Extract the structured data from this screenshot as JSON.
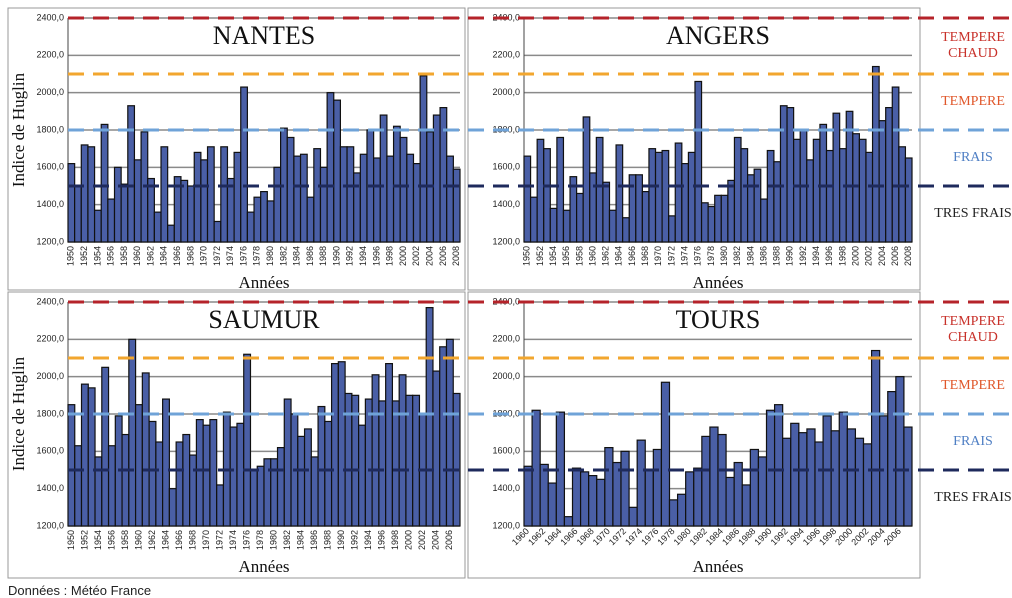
{
  "chart_data": [
    {
      "type": "bar",
      "title": "NANTES",
      "y_label": "Indice de Huglin",
      "x_label": "Années",
      "color": "#4a5fa6",
      "grid": true,
      "ylim": [
        1200,
        2400
      ],
      "yticks": [
        {
          "value": 1200,
          "label": "1200,0"
        },
        {
          "value": 1400,
          "label": "1400,0"
        },
        {
          "value": 1600,
          "label": "1600,0"
        },
        {
          "value": 1800,
          "label": "1800,0"
        },
        {
          "value": 2000,
          "label": "2000,0"
        },
        {
          "value": 2200,
          "label": "2200,0"
        },
        {
          "value": 2400,
          "label": "2400,0"
        }
      ],
      "categories": [
        "1950",
        null,
        "1952",
        null,
        "1954",
        null,
        "1956",
        null,
        "1958",
        null,
        "1960",
        null,
        "1962",
        null,
        "1964",
        null,
        "1966",
        null,
        "1968",
        null,
        "1970",
        null,
        "1972",
        null,
        "1974",
        null,
        "1976",
        null,
        "1978",
        null,
        "1980",
        null,
        "1982",
        null,
        "1984",
        null,
        "1986",
        null,
        "1988",
        null,
        "1990",
        null,
        "1992",
        null,
        "1994",
        null,
        "1996",
        null,
        "1998",
        null,
        "2000",
        null,
        "2002",
        null,
        "2004",
        null,
        "2006",
        null,
        "2008"
      ],
      "values": [
        1620,
        1500,
        1720,
        1710,
        1370,
        1830,
        1430,
        1600,
        1510,
        1930,
        1640,
        1790,
        1540,
        1360,
        1710,
        1290,
        1550,
        1530,
        1500,
        1680,
        1640,
        1710,
        1310,
        1710,
        1540,
        1680,
        2030,
        1360,
        1440,
        1470,
        1420,
        1600,
        1810,
        1760,
        1660,
        1670,
        1440,
        1700,
        1600,
        2000,
        1960,
        1710,
        1710,
        1570,
        1670,
        1800,
        1650,
        1880,
        1660,
        1820,
        1760,
        1670,
        1620,
        2090,
        1790,
        1880,
        1920,
        1660,
        1590
      ]
    },
    {
      "type": "bar",
      "title": "ANGERS",
      "x_label": "Années",
      "color": "#4a5fa6",
      "grid": true,
      "ylim": [
        1200,
        2400
      ],
      "yticks": [
        {
          "value": 1200,
          "label": "1200,0"
        },
        {
          "value": 1400,
          "label": "1400,0"
        },
        {
          "value": 1600,
          "label": "1600,0"
        },
        {
          "value": 1800,
          "label": "1800,0"
        },
        {
          "value": 2000,
          "label": "2000,0"
        },
        {
          "value": 2200,
          "label": "2200,0"
        },
        {
          "value": 2400,
          "label": "2400,0"
        }
      ],
      "categories": [
        "1950",
        null,
        "1952",
        null,
        "1954",
        null,
        "1956",
        null,
        "1958",
        null,
        "1960",
        null,
        "1962",
        null,
        "1964",
        null,
        "1966",
        null,
        "1968",
        null,
        "1970",
        null,
        "1972",
        null,
        "1974",
        null,
        "1976",
        null,
        "1978",
        null,
        "1980",
        null,
        "1982",
        null,
        "1984",
        null,
        "1986",
        null,
        "1988",
        null,
        "1990",
        null,
        "1992",
        null,
        "1994",
        null,
        "1996",
        null,
        "1998",
        null,
        "2000",
        null,
        "2002",
        null,
        "2004",
        null,
        "2006",
        null,
        "2008"
      ],
      "values": [
        1660,
        1440,
        1750,
        1700,
        1380,
        1760,
        1370,
        1550,
        1460,
        1870,
        1570,
        1760,
        1520,
        1370,
        1720,
        1330,
        1560,
        1560,
        1470,
        1700,
        1680,
        1690,
        1340,
        1730,
        1620,
        1680,
        2060,
        1410,
        1390,
        1450,
        1450,
        1530,
        1760,
        1700,
        1560,
        1590,
        1430,
        1690,
        1630,
        1930,
        1920,
        1750,
        1800,
        1640,
        1750,
        1830,
        1690,
        1890,
        1700,
        1900,
        1780,
        1750,
        1680,
        2140,
        1850,
        1920,
        2030,
        1710,
        1650
      ]
    },
    {
      "type": "bar",
      "title": "SAUMUR",
      "y_label": "Indice de Huglin",
      "x_label": "Années",
      "color": "#4a5fa6",
      "grid": true,
      "ylim": [
        1200,
        2400
      ],
      "yticks": [
        {
          "value": 1200,
          "label": "1200,0"
        },
        {
          "value": 1400,
          "label": "1400,0"
        },
        {
          "value": 1600,
          "label": "1600,0"
        },
        {
          "value": 1800,
          "label": "1800,0"
        },
        {
          "value": 2000,
          "label": "2000,0"
        },
        {
          "value": 2200,
          "label": "2200,0"
        },
        {
          "value": 2400,
          "label": "2400,0"
        }
      ],
      "categories": [
        "1950",
        null,
        "1952",
        null,
        "1954",
        null,
        "1956",
        null,
        "1958",
        null,
        "1960",
        null,
        "1962",
        null,
        "1964",
        null,
        "1966",
        null,
        "1968",
        null,
        "1970",
        null,
        "1972",
        null,
        "1974",
        null,
        "1976",
        null,
        "1978",
        null,
        "1980",
        null,
        "1982",
        null,
        "1984",
        null,
        "1986",
        null,
        "1988",
        null,
        "1990",
        null,
        "1992",
        null,
        "1994",
        null,
        "1996",
        null,
        "1998",
        null,
        "2000",
        null,
        "2002",
        null,
        "2004",
        null,
        "2006",
        null
      ],
      "values": [
        1850,
        1630,
        1960,
        1940,
        1570,
        2050,
        1630,
        1790,
        1690,
        2200,
        1850,
        2020,
        1760,
        1650,
        1880,
        1400,
        1650,
        1690,
        1580,
        1770,
        1740,
        1770,
        1420,
        1810,
        1730,
        1750,
        2120,
        1500,
        1520,
        1560,
        1560,
        1620,
        1880,
        1800,
        1680,
        1720,
        1570,
        1840,
        1760,
        2070,
        2080,
        1910,
        1900,
        1740,
        1880,
        2010,
        1870,
        2070,
        1870,
        2010,
        1900,
        1900,
        1800,
        2370,
        2030,
        2160,
        2200,
        1910
      ]
    },
    {
      "type": "bar",
      "title": "TOURS",
      "x_label": "Années",
      "color": "#4a5fa6",
      "grid": true,
      "ylim": [
        1200,
        2400
      ],
      "yticks": [
        {
          "value": 1200,
          "label": "1200,0"
        },
        {
          "value": 1400,
          "label": "1400,0"
        },
        {
          "value": 1600,
          "label": "1600,0"
        },
        {
          "value": 1800,
          "label": "1800,0"
        },
        {
          "value": 2000,
          "label": "2000,0"
        },
        {
          "value": 2200,
          "label": "2200,0"
        },
        {
          "value": 2400,
          "label": "2400,0"
        }
      ],
      "categories": [
        "1960",
        null,
        "1962",
        null,
        "1964",
        null,
        "1966",
        null,
        "1968",
        null,
        "1970",
        null,
        "1972",
        null,
        "1974",
        null,
        "1976",
        null,
        "1978",
        null,
        "1980",
        null,
        "1982",
        null,
        "1984",
        null,
        "1986",
        null,
        "1988",
        null,
        "1990",
        null,
        "1992",
        null,
        "1994",
        null,
        "1996",
        null,
        "1998",
        null,
        "2000",
        null,
        "2002",
        null,
        "2004",
        null,
        "2006",
        null
      ],
      "values": [
        1520,
        1820,
        1530,
        1430,
        1810,
        1250,
        1510,
        1490,
        1470,
        1450,
        1620,
        1540,
        1600,
        1300,
        1660,
        1500,
        1610,
        1970,
        1340,
        1370,
        1490,
        1510,
        1680,
        1730,
        1690,
        1460,
        1540,
        1420,
        1610,
        1570,
        1820,
        1850,
        1670,
        1750,
        1700,
        1720,
        1650,
        1790,
        1710,
        1810,
        1720,
        1670,
        1640,
        2140,
        1790,
        1920,
        2000,
        1730
      ]
    }
  ],
  "thresholds": [
    {
      "value": 2400,
      "color": "#b5232a"
    },
    {
      "value": 2100,
      "color": "#f2a62e"
    },
    {
      "value": 1800,
      "color": "#6fa3d8"
    },
    {
      "value": 1500,
      "color": "#1e2a5c"
    }
  ],
  "zones": [
    {
      "label": "TEMPERE CHAUD",
      "color": "#c8312a"
    },
    {
      "label": "TEMPERE",
      "color": "#e0572a"
    },
    {
      "label": "FRAIS",
      "color": "#4f7fc4"
    },
    {
      "label": "TRES FRAIS",
      "color": "#222222"
    }
  ],
  "source": "Données : Météo France"
}
